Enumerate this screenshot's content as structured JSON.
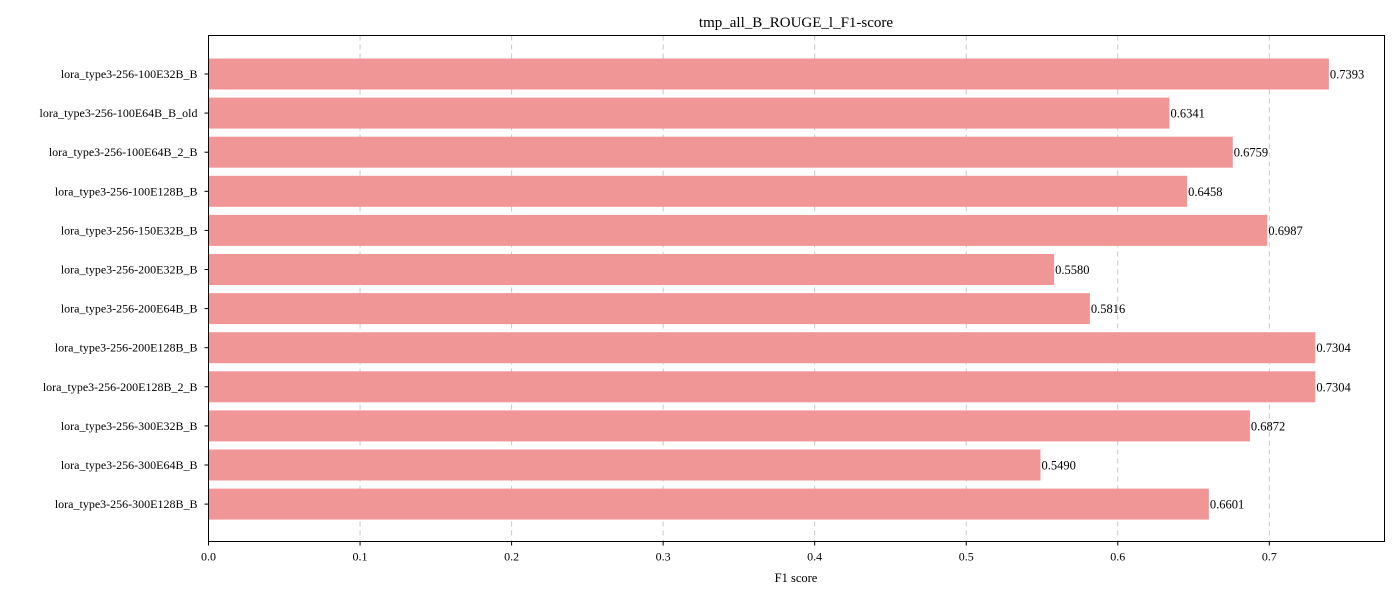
{
  "chart_data": {
    "type": "bar",
    "orientation": "horizontal",
    "title": "tmp_all_B_ROUGE_l_F1-score",
    "xlabel": "F1 score",
    "ylabel": "",
    "xlim": [
      0,
      0.776
    ],
    "xticks": [
      0.0,
      0.1,
      0.2,
      0.3,
      0.4,
      0.5,
      0.6,
      0.7
    ],
    "xtick_labels": [
      "0.0",
      "0.1",
      "0.2",
      "0.3",
      "0.4",
      "0.5",
      "0.6",
      "0.7"
    ],
    "grid": "x",
    "bar_color": "#f09696",
    "categories": [
      "lora_type3-256-100E32B_B",
      "lora_type3-256-100E64B_B_old",
      "lora_type3-256-100E64B_2_B",
      "lora_type3-256-100E128B_B",
      "lora_type3-256-150E32B_B",
      "lora_type3-256-200E32B_B",
      "lora_type3-256-200E64B_B",
      "lora_type3-256-200E128B_B",
      "lora_type3-256-200E128B_2_B",
      "lora_type3-256-300E32B_B",
      "lora_type3-256-300E64B_B",
      "lora_type3-256-300E128B_B"
    ],
    "values": [
      0.7393,
      0.6341,
      0.6759,
      0.6458,
      0.6987,
      0.558,
      0.5816,
      0.7304,
      0.7304,
      0.6872,
      0.549,
      0.6601
    ],
    "value_labels": [
      "0.7393",
      "0.6341",
      "0.6759",
      "0.6458",
      "0.6987",
      "0.5580",
      "0.5816",
      "0.7304",
      "0.7304",
      "0.6872",
      "0.5490",
      "0.6601"
    ]
  }
}
